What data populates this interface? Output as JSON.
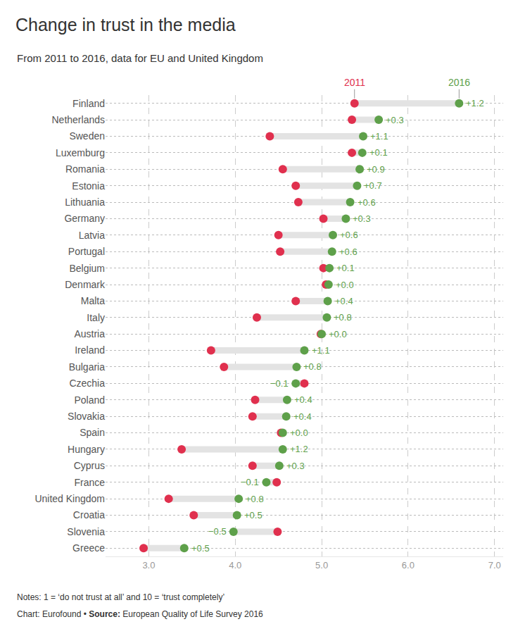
{
  "chart_data": {
    "type": "dumbbell",
    "orientation": "horizontal",
    "title": "Change in trust in the media",
    "subtitle": "From 2011 to 2016, data for EU and United Kingdom",
    "note": "Notes: 1 = ‘do not trust at all’ and 10 = ‘trust completely’",
    "credit": "Chart: Eurofound",
    "separator": "•",
    "source_label": "Source:",
    "source": "European Quality of Life Survey 2016",
    "categories": [
      "Finland",
      "Netherlands",
      "Sweden",
      "Luxemburg",
      "Romania",
      "Estonia",
      "Lithuania",
      "Germany",
      "Latvia",
      "Portugal",
      "Belgium",
      "Denmark",
      "Malta",
      "Italy",
      "Austria",
      "Ireland",
      "Bulgaria",
      "Czechia",
      "Poland",
      "Slovakia",
      "Spain",
      "Hungary",
      "Cyprus",
      "France",
      "United Kingdom",
      "Croatia",
      "Slovenia",
      "Greece"
    ],
    "series": [
      {
        "name": "2011",
        "color": "#e0304e",
        "marker": "circle",
        "values": [
          5.38,
          5.35,
          4.4,
          5.35,
          4.55,
          4.7,
          4.73,
          5.02,
          4.5,
          4.52,
          5.02,
          5.05,
          4.7,
          4.25,
          4.99,
          3.72,
          3.87,
          4.8,
          4.23,
          4.2,
          4.53,
          3.38,
          4.2,
          4.48,
          3.23,
          3.52,
          4.49,
          2.94
        ]
      },
      {
        "name": "2016",
        "color": "#5ea04a",
        "marker": "circle",
        "values": [
          6.59,
          5.66,
          5.48,
          5.47,
          5.44,
          5.41,
          5.33,
          5.28,
          5.13,
          5.12,
          5.09,
          5.08,
          5.07,
          5.06,
          5.0,
          4.8,
          4.71,
          4.7,
          4.6,
          4.59,
          4.55,
          4.55,
          4.51,
          4.36,
          4.04,
          4.02,
          3.98,
          3.41
        ]
      }
    ],
    "change": {
      "color": "#5ea04a",
      "values": [
        1.2,
        0.3,
        1.1,
        0.1,
        0.9,
        0.7,
        0.6,
        0.3,
        0.6,
        0.6,
        0.1,
        0.0,
        0.4,
        0.8,
        0.0,
        1.1,
        0.8,
        -0.1,
        0.4,
        0.4,
        0.0,
        1.2,
        0.3,
        -0.1,
        0.8,
        0.5,
        -0.5,
        0.5
      ],
      "value_labels": [
        "+1.2",
        "+0.3",
        "+1.1",
        "+0.1",
        "+0.9",
        "+0.7",
        "+0.6",
        "+0.3",
        "+0.6",
        "+0.6",
        "+0.1",
        "+0.0",
        "+0.4",
        "+0.8",
        "+0.0",
        "+1.1",
        "+0.8",
        "−0.1",
        "+0.4",
        "+0.4",
        "+0.0",
        "+1.2",
        "+0.3",
        "−0.1",
        "+0.8",
        "+0.5",
        "−0.5",
        "+0.5"
      ]
    },
    "xlim": [
      2.5,
      7.1
    ],
    "xticks": [
      {
        "value": 3,
        "label": "3.0"
      },
      {
        "value": 4,
        "label": "4.0"
      },
      {
        "value": 5,
        "label": "5.0"
      },
      {
        "value": 6,
        "label": "6.0"
      },
      {
        "value": 7,
        "label": "7.0"
      }
    ],
    "grid": true
  }
}
